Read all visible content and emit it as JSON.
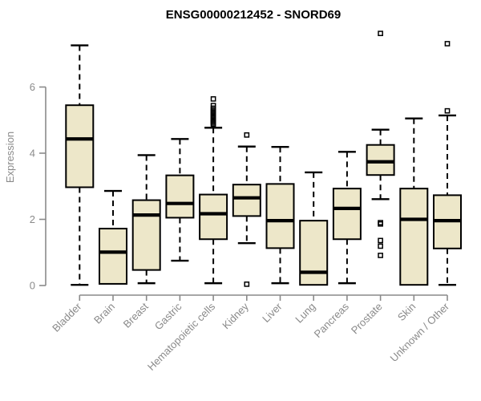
{
  "title": "ENSG00000212452 - SNORD69",
  "colors": {
    "box_fill": "#ede7c9",
    "box_border": "#000000",
    "median": "#000000",
    "whisker": "#000000",
    "outlier": "#000000",
    "axis": "#8a8a8a",
    "axis_text": "#8a8a8a",
    "title_text": "#000000",
    "background": "#ffffff"
  },
  "chart_data": {
    "type": "boxplot",
    "title": "ENSG00000212452 - SNORD69",
    "xlabel": "",
    "ylabel": "Expression",
    "yticks": [
      0,
      2,
      4,
      6
    ],
    "ylim": [
      0,
      7.75
    ],
    "grid": "off",
    "legend": "none",
    "categories": [
      "Bladder",
      "Brain",
      "Breast",
      "Gastric",
      "Hematopoietic cells",
      "Kidney",
      "Liver",
      "Lung",
      "Pancreas",
      "Prostate",
      "Skin",
      "Unknown / Other"
    ],
    "series": [
      {
        "name": "Bladder",
        "whisker_low": 0.02,
        "q1": 2.97,
        "median": 4.43,
        "q3": 5.45,
        "whisker_high": 7.26,
        "outliers": []
      },
      {
        "name": "Brain",
        "whisker_low": 0.05,
        "q1": 0.05,
        "median": 1.01,
        "q3": 1.72,
        "whisker_high": 2.86,
        "outliers": []
      },
      {
        "name": "Breast",
        "whisker_low": 0.07,
        "q1": 0.47,
        "median": 2.13,
        "q3": 2.58,
        "whisker_high": 3.94,
        "outliers": []
      },
      {
        "name": "Gastric",
        "whisker_low": 0.75,
        "q1": 2.05,
        "median": 2.48,
        "q3": 3.33,
        "whisker_high": 4.43,
        "outliers": []
      },
      {
        "name": "Hematopoietic cells",
        "whisker_low": 0.07,
        "q1": 1.4,
        "median": 2.17,
        "q3": 2.75,
        "whisker_high": 4.77,
        "outliers": [
          4.87,
          4.91,
          4.95,
          4.99,
          5.03,
          5.07,
          5.11,
          5.15,
          5.19,
          5.23,
          5.27,
          5.31,
          5.36,
          5.44,
          5.64
        ]
      },
      {
        "name": "Kidney",
        "whisker_low": 1.28,
        "q1": 2.1,
        "median": 2.65,
        "q3": 3.05,
        "whisker_high": 4.2,
        "outliers": [
          4.55,
          0.04
        ]
      },
      {
        "name": "Liver",
        "whisker_low": 0.07,
        "q1": 1.13,
        "median": 1.96,
        "q3": 3.07,
        "whisker_high": 4.19,
        "outliers": []
      },
      {
        "name": "Lung",
        "whisker_low": 0.02,
        "q1": 0.02,
        "median": 0.4,
        "q3": 1.96,
        "whisker_high": 3.42,
        "outliers": []
      },
      {
        "name": "Pancreas",
        "whisker_low": 0.07,
        "q1": 1.4,
        "median": 2.33,
        "q3": 2.93,
        "whisker_high": 4.04,
        "outliers": []
      },
      {
        "name": "Prostate",
        "whisker_low": 2.61,
        "q1": 3.34,
        "median": 3.74,
        "q3": 4.25,
        "whisker_high": 4.71,
        "outliers": [
          7.62,
          1.9,
          1.86,
          1.36,
          1.19,
          0.91
        ]
      },
      {
        "name": "Skin",
        "whisker_low": 0.02,
        "q1": 0.02,
        "median": 2.0,
        "q3": 2.93,
        "whisker_high": 5.05,
        "outliers": []
      },
      {
        "name": "Unknown / Other",
        "whisker_low": 0.02,
        "q1": 1.12,
        "median": 1.96,
        "q3": 2.73,
        "whisker_high": 5.14,
        "outliers": [
          7.31,
          5.28
        ]
      }
    ]
  }
}
